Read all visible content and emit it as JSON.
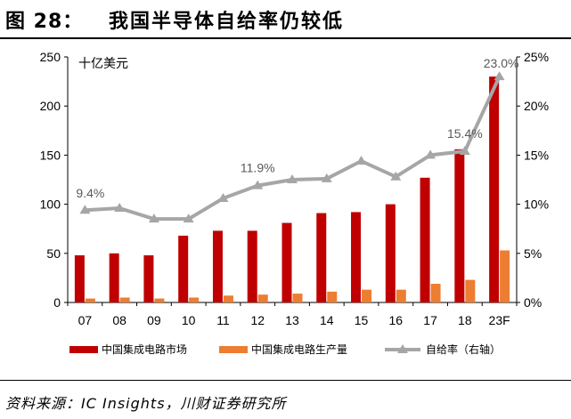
{
  "figure": {
    "label": "图 28：",
    "title": "我国半导体自给率仍较低"
  },
  "source": "资料来源：IC Insights，川财证券研究所",
  "colors": {
    "market": "#C00000",
    "production": "#ED7D31",
    "ratio": "#A6A6A6",
    "axis": "#000000"
  },
  "chart_data": {
    "type": "bar+line",
    "unit_label": "十亿美元",
    "categories": [
      "07",
      "08",
      "09",
      "10",
      "11",
      "12",
      "13",
      "14",
      "15",
      "16",
      "17",
      "18",
      "23F"
    ],
    "series": [
      {
        "name": "中国集成电路市场",
        "type": "bar",
        "axis": "left",
        "values": [
          48,
          50,
          48,
          68,
          73,
          73,
          81,
          91,
          92,
          100,
          127,
          156,
          230
        ]
      },
      {
        "name": "中国集成电路生产量",
        "type": "bar",
        "axis": "left",
        "values": [
          4,
          5,
          4,
          5,
          7,
          8,
          9,
          11,
          13,
          13,
          19,
          23,
          53
        ]
      },
      {
        "name": "自给率（右轴）",
        "type": "line",
        "axis": "right",
        "values": [
          9.4,
          9.6,
          8.5,
          8.5,
          10.6,
          11.9,
          12.5,
          12.6,
          14.4,
          12.8,
          15.0,
          15.4,
          23.0
        ]
      }
    ],
    "left_axis": {
      "min": 0,
      "max": 250,
      "ticks": [
        "0",
        "50",
        "100",
        "150",
        "200",
        "250"
      ]
    },
    "right_axis": {
      "min": 0,
      "max": 25,
      "ticks": [
        "0%",
        "5%",
        "10%",
        "15%",
        "20%",
        "25%"
      ]
    },
    "annotations": [
      {
        "index": 0,
        "text": "9.4%"
      },
      {
        "index": 5,
        "text": "11.9%"
      },
      {
        "index": 11,
        "text": "15.4%"
      },
      {
        "index": 12,
        "text": "23.0%"
      }
    ]
  }
}
